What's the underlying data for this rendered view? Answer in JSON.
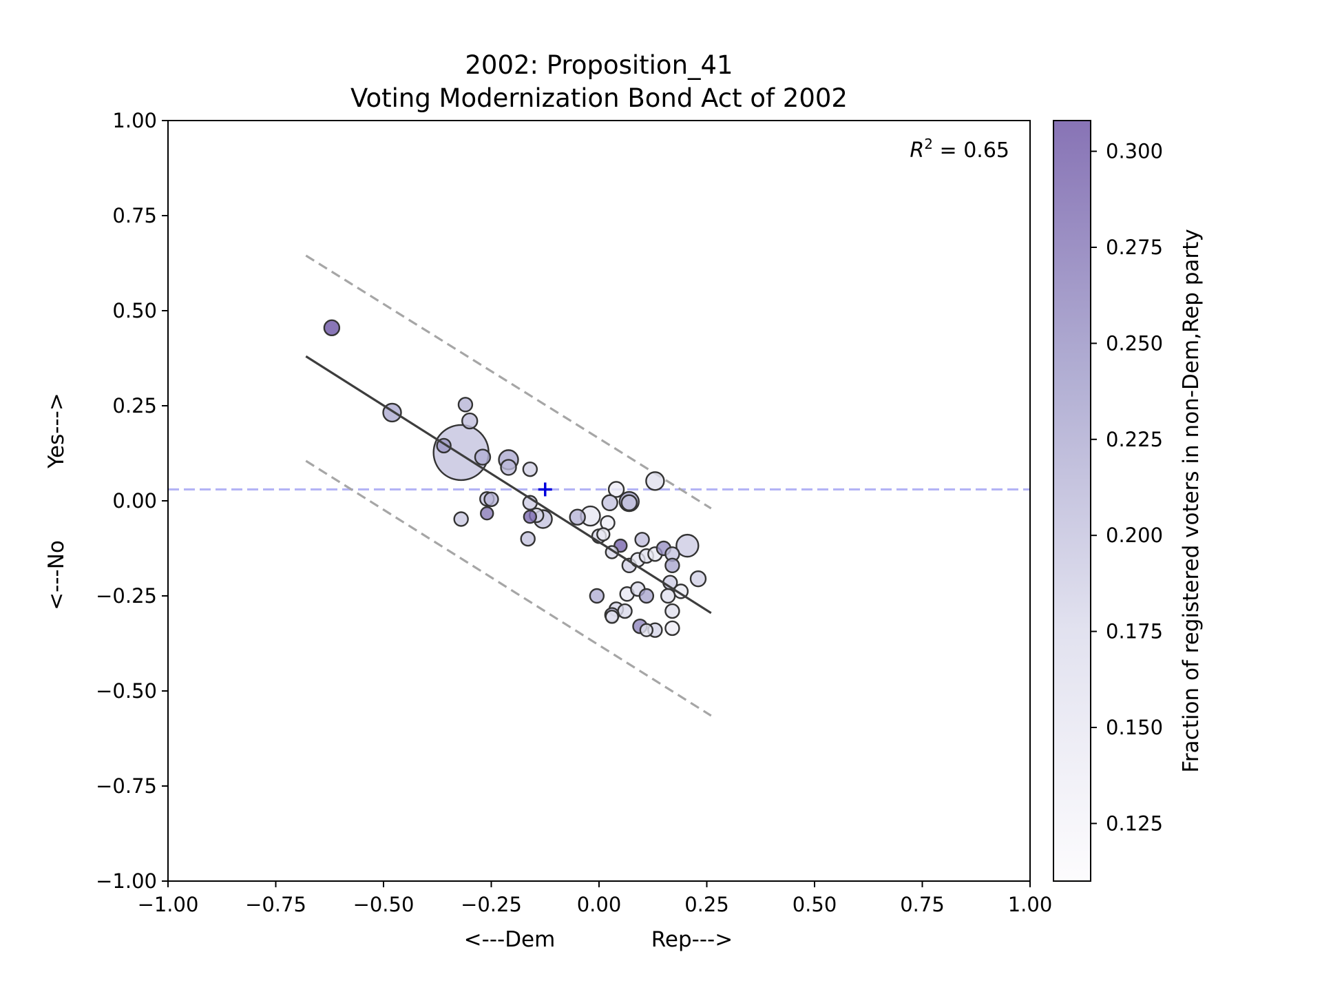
{
  "chart_data": {
    "type": "scatter",
    "title": "2002: Proposition_41",
    "subtitle": "Voting Modernization Bond Act of 2002",
    "xlabel_left": "<---Dem",
    "xlabel_right": "Rep--->",
    "ylabel_bottom": "<---No",
    "ylabel_top": "Yes--->",
    "xlim": [
      -1.0,
      1.0
    ],
    "ylim": [
      -1.0,
      1.0
    ],
    "xticks": [
      "−1.00",
      "−0.75",
      "−0.50",
      "−0.25",
      "0.00",
      "0.25",
      "0.50",
      "0.75",
      "1.00"
    ],
    "yticks": [
      "1.00",
      "0.75",
      "0.50",
      "0.25",
      "0.00",
      "−0.25",
      "−0.50",
      "−0.75",
      "−1.00"
    ],
    "annotation": {
      "label": "R",
      "superscript": "2",
      "rest": " = 0.65"
    },
    "reference_line_y": 0.03,
    "reference_marker": {
      "x": -0.125,
      "y": 0.03
    },
    "fit_line": {
      "x": [
        -0.68,
        0.26
      ],
      "y": [
        0.38,
        -0.295
      ]
    },
    "upper_band": {
      "x": [
        -0.68,
        0.26
      ],
      "y": [
        0.645,
        -0.02
      ]
    },
    "lower_band": {
      "x": [
        -0.68,
        0.26
      ],
      "y": [
        0.105,
        -0.565
      ]
    },
    "colorbar": {
      "label": "Fraction of registered voters in non-Dem,Rep party",
      "range": [
        0.11,
        0.308
      ],
      "ticks": [
        "0.125",
        "0.150",
        "0.175",
        "0.200",
        "0.225",
        "0.250",
        "0.275",
        "0.300"
      ],
      "colors": [
        "#fcfbfd",
        "#dadaeb",
        "#9e9ac8",
        "#6a51a3"
      ]
    },
    "points": [
      {
        "x": -0.62,
        "y": 0.455,
        "s": 11,
        "c": 0.305
      },
      {
        "x": -0.48,
        "y": 0.232,
        "s": 13,
        "c": 0.225
      },
      {
        "x": -0.31,
        "y": 0.253,
        "s": 10,
        "c": 0.215
      },
      {
        "x": -0.3,
        "y": 0.21,
        "s": 11,
        "c": 0.205
      },
      {
        "x": -0.36,
        "y": 0.145,
        "s": 10,
        "c": 0.245
      },
      {
        "x": -0.32,
        "y": 0.127,
        "s": 40,
        "c": 0.2
      },
      {
        "x": -0.27,
        "y": 0.115,
        "s": 11,
        "c": 0.22
      },
      {
        "x": -0.21,
        "y": 0.108,
        "s": 14,
        "c": 0.225
      },
      {
        "x": -0.21,
        "y": 0.088,
        "s": 11,
        "c": 0.21
      },
      {
        "x": -0.16,
        "y": 0.083,
        "s": 10,
        "c": 0.185
      },
      {
        "x": -0.26,
        "y": 0.005,
        "s": 10,
        "c": 0.195
      },
      {
        "x": -0.25,
        "y": 0.004,
        "s": 10,
        "c": 0.215
      },
      {
        "x": -0.26,
        "y": -0.033,
        "s": 9,
        "c": 0.27
      },
      {
        "x": -0.32,
        "y": -0.048,
        "s": 10,
        "c": 0.195
      },
      {
        "x": -0.16,
        "y": -0.005,
        "s": 10,
        "c": 0.19
      },
      {
        "x": -0.16,
        "y": -0.042,
        "s": 9,
        "c": 0.285
      },
      {
        "x": -0.145,
        "y": -0.038,
        "s": 10,
        "c": 0.18
      },
      {
        "x": -0.13,
        "y": -0.048,
        "s": 13,
        "c": 0.2
      },
      {
        "x": -0.165,
        "y": -0.1,
        "s": 10,
        "c": 0.2
      },
      {
        "x": -0.05,
        "y": -0.043,
        "s": 11,
        "c": 0.215
      },
      {
        "x": -0.02,
        "y": -0.04,
        "s": 14,
        "c": 0.15
      },
      {
        "x": 0.04,
        "y": 0.03,
        "s": 11,
        "c": 0.14
      },
      {
        "x": 0.025,
        "y": -0.005,
        "s": 11,
        "c": 0.2
      },
      {
        "x": 0.07,
        "y": -0.002,
        "s": 14,
        "c": 0.23
      },
      {
        "x": 0.07,
        "y": -0.005,
        "s": 11,
        "c": 0.2
      },
      {
        "x": 0.13,
        "y": 0.052,
        "s": 13,
        "c": 0.165
      },
      {
        "x": 0.02,
        "y": -0.058,
        "s": 10,
        "c": 0.135
      },
      {
        "x": 0.01,
        "y": -0.088,
        "s": 9,
        "c": 0.145
      },
      {
        "x": 0.0,
        "y": -0.093,
        "s": 10,
        "c": 0.175
      },
      {
        "x": 0.05,
        "y": -0.118,
        "s": 9,
        "c": 0.29
      },
      {
        "x": 0.03,
        "y": -0.135,
        "s": 9,
        "c": 0.18
      },
      {
        "x": 0.1,
        "y": -0.102,
        "s": 10,
        "c": 0.205
      },
      {
        "x": 0.07,
        "y": -0.17,
        "s": 10,
        "c": 0.185
      },
      {
        "x": 0.09,
        "y": -0.155,
        "s": 10,
        "c": 0.15
      },
      {
        "x": 0.11,
        "y": -0.145,
        "s": 10,
        "c": 0.16
      },
      {
        "x": 0.13,
        "y": -0.14,
        "s": 10,
        "c": 0.145
      },
      {
        "x": 0.15,
        "y": -0.125,
        "s": 10,
        "c": 0.25
      },
      {
        "x": 0.17,
        "y": -0.14,
        "s": 10,
        "c": 0.2
      },
      {
        "x": 0.17,
        "y": -0.17,
        "s": 10,
        "c": 0.23
      },
      {
        "x": 0.205,
        "y": -0.118,
        "s": 16,
        "c": 0.19
      },
      {
        "x": 0.165,
        "y": -0.215,
        "s": 10,
        "c": 0.19
      },
      {
        "x": 0.19,
        "y": -0.238,
        "s": 10,
        "c": 0.145
      },
      {
        "x": 0.23,
        "y": -0.205,
        "s": 11,
        "c": 0.185
      },
      {
        "x": 0.16,
        "y": -0.25,
        "s": 10,
        "c": 0.165
      },
      {
        "x": -0.005,
        "y": -0.25,
        "s": 10,
        "c": 0.22
      },
      {
        "x": 0.065,
        "y": -0.245,
        "s": 10,
        "c": 0.15
      },
      {
        "x": 0.09,
        "y": -0.232,
        "s": 10,
        "c": 0.175
      },
      {
        "x": 0.11,
        "y": -0.25,
        "s": 10,
        "c": 0.23
      },
      {
        "x": 0.17,
        "y": -0.29,
        "s": 10,
        "c": 0.165
      },
      {
        "x": 0.04,
        "y": -0.285,
        "s": 10,
        "c": 0.18
      },
      {
        "x": 0.06,
        "y": -0.29,
        "s": 10,
        "c": 0.175
      },
      {
        "x": 0.03,
        "y": -0.3,
        "s": 10,
        "c": 0.215
      },
      {
        "x": 0.03,
        "y": -0.305,
        "s": 9,
        "c": 0.15
      },
      {
        "x": 0.095,
        "y": -0.33,
        "s": 10,
        "c": 0.26
      },
      {
        "x": 0.11,
        "y": -0.34,
        "s": 9,
        "c": 0.16
      },
      {
        "x": 0.13,
        "y": -0.34,
        "s": 10,
        "c": 0.18
      },
      {
        "x": 0.17,
        "y": -0.335,
        "s": 10,
        "c": 0.14
      }
    ]
  }
}
